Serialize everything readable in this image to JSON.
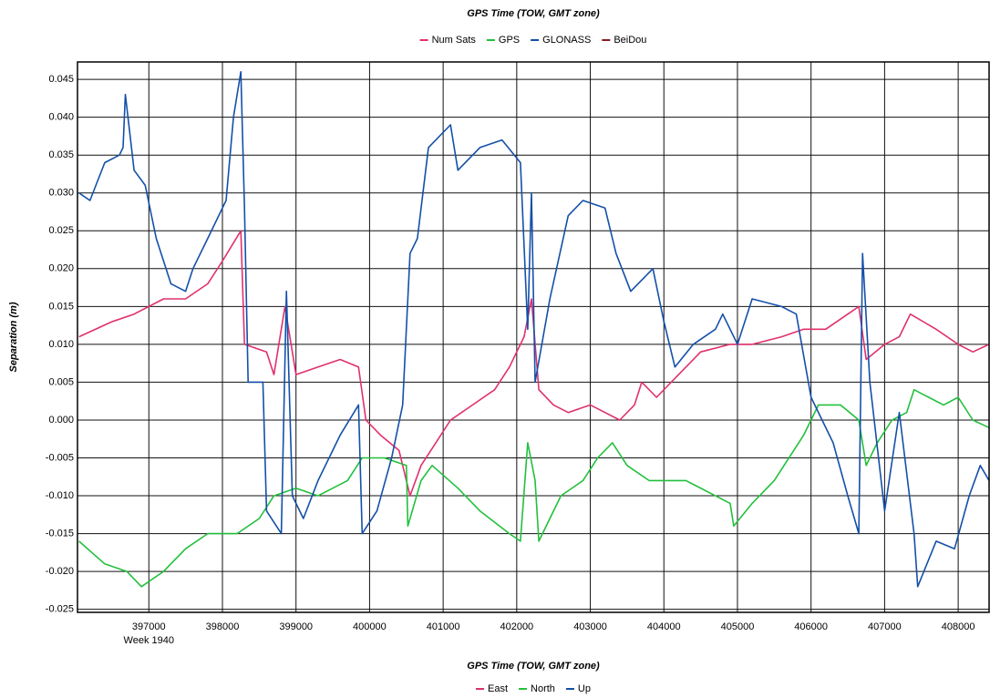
{
  "chart_data": {
    "type": "line",
    "title": "GPS Time (TOW, GMT zone)",
    "x_label": "GPS Time (TOW, GMT zone)",
    "y_label": "Separation (m)",
    "x_annotation": "Week 1940",
    "top_legend": [
      {
        "name": "Num Sats",
        "color": "#e0306e"
      },
      {
        "name": "GPS",
        "color": "#22c03c"
      },
      {
        "name": "GLONASS",
        "color": "#1450a8"
      },
      {
        "name": "BeiDou",
        "color": "#8b1a1a"
      }
    ],
    "xlim": [
      396030,
      408420
    ],
    "ylim": [
      -0.0254,
      0.0473
    ],
    "xticks": [
      397000,
      398000,
      399000,
      400000,
      401000,
      402000,
      403000,
      404000,
      405000,
      406000,
      407000,
      408000
    ],
    "yticks": [
      0.045,
      {
        "value": 0.04,
        "label": "0.040"
      },
      0.035,
      {
        "value": 0.03,
        "label": "0.030"
      },
      0.025,
      {
        "value": 0.02,
        "label": "0.020"
      },
      0.015,
      {
        "value": 0.01,
        "label": "0.010"
      },
      0.005,
      {
        "value": 0,
        "label": "0.000"
      },
      -0.005,
      {
        "value": -0.01,
        "label": "-0.010"
      },
      -0.015,
      {
        "value": -0.02,
        "label": "-0.020"
      },
      -0.025
    ],
    "grid": true,
    "series": [
      {
        "name": "East",
        "color": "#e0306e",
        "x": [
          396050,
          396500,
          396800,
          397200,
          397500,
          397800,
          398000,
          398250,
          398300,
          398600,
          398700,
          398850,
          399000,
          399300,
          399600,
          399850,
          399950,
          400150,
          400400,
          400550,
          400700,
          400900,
          401100,
          401400,
          401700,
          401900,
          402100,
          402200,
          402300,
          402500,
          402700,
          403000,
          403200,
          403400,
          403600,
          403700,
          403900,
          404200,
          404500,
          404900,
          405200,
          405600,
          405900,
          406200,
          406500,
          406650,
          406750,
          407000,
          407200,
          407350,
          407700,
          408000,
          408200,
          408420
        ],
        "values": [
          0.011,
          0.013,
          0.014,
          0.016,
          0.016,
          0.018,
          0.021,
          0.025,
          0.01,
          0.009,
          0.006,
          0.015,
          0.006,
          0.007,
          0.008,
          0.007,
          0.0,
          -0.002,
          -0.004,
          -0.01,
          -0.006,
          -0.003,
          0.0,
          0.002,
          0.004,
          0.007,
          0.011,
          0.016,
          0.004,
          0.002,
          0.001,
          0.002,
          0.001,
          0.0,
          0.002,
          0.005,
          0.003,
          0.006,
          0.009,
          0.01,
          0.01,
          0.011,
          0.012,
          0.012,
          0.014,
          0.015,
          0.008,
          0.01,
          0.011,
          0.014,
          0.012,
          0.01,
          0.009,
          0.01
        ]
      },
      {
        "name": "North",
        "color": "#22c03c",
        "x": [
          396050,
          396400,
          396700,
          396900,
          397200,
          397500,
          397800,
          398200,
          398500,
          398700,
          399000,
          399300,
          399700,
          399900,
          400200,
          400500,
          400520,
          400700,
          400850,
          401200,
          401500,
          401900,
          402050,
          402150,
          402250,
          402300,
          402600,
          402900,
          403100,
          403300,
          403500,
          403800,
          404300,
          404700,
          404900,
          404950,
          405200,
          405500,
          405900,
          406100,
          406400,
          406650,
          406750,
          406900,
          407100,
          407300,
          407400,
          407800,
          408000,
          408200,
          408420
        ],
        "values": [
          -0.016,
          -0.019,
          -0.02,
          -0.022,
          -0.02,
          -0.017,
          -0.015,
          -0.015,
          -0.013,
          -0.01,
          -0.009,
          -0.01,
          -0.008,
          -0.005,
          -0.005,
          -0.006,
          -0.014,
          -0.008,
          -0.006,
          -0.009,
          -0.012,
          -0.015,
          -0.016,
          -0.003,
          -0.008,
          -0.016,
          -0.01,
          -0.008,
          -0.005,
          -0.003,
          -0.006,
          -0.008,
          -0.008,
          -0.01,
          -0.011,
          -0.014,
          -0.011,
          -0.008,
          -0.002,
          0.002,
          0.002,
          0.0,
          -0.006,
          -0.003,
          0.0,
          0.001,
          0.004,
          0.002,
          0.003,
          0.0,
          -0.001
        ]
      },
      {
        "name": "Up",
        "color": "#1450a8",
        "x": [
          396050,
          396200,
          396400,
          396600,
          396650,
          396680,
          396800,
          396950,
          397100,
          397300,
          397500,
          397600,
          397800,
          398050,
          398150,
          398250,
          398300,
          398350,
          398550,
          398600,
          398800,
          398870,
          398950,
          399100,
          399300,
          399600,
          399850,
          399900,
          400100,
          400300,
          400450,
          400550,
          400650,
          400800,
          401100,
          401200,
          401500,
          401800,
          402050,
          402150,
          402200,
          402250,
          402450,
          402700,
          402900,
          403200,
          403350,
          403550,
          403850,
          404000,
          404150,
          404400,
          404700,
          404800,
          405000,
          405200,
          405600,
          405800,
          406000,
          406300,
          406500,
          406650,
          406700,
          406800,
          407000,
          407200,
          407400,
          407450,
          407700,
          407950,
          408150,
          408300,
          408420
        ],
        "values": [
          0.03,
          0.029,
          0.034,
          0.035,
          0.036,
          0.043,
          0.033,
          0.031,
          0.024,
          0.018,
          0.017,
          0.02,
          0.024,
          0.029,
          0.04,
          0.046,
          0.028,
          0.005,
          0.005,
          -0.012,
          -0.015,
          0.017,
          -0.01,
          -0.013,
          -0.008,
          -0.002,
          0.002,
          -0.015,
          -0.012,
          -0.005,
          0.002,
          0.022,
          0.024,
          0.036,
          0.039,
          0.033,
          0.036,
          0.037,
          0.034,
          0.012,
          0.03,
          0.005,
          0.016,
          0.027,
          0.029,
          0.028,
          0.022,
          0.017,
          0.02,
          0.013,
          0.007,
          0.01,
          0.012,
          0.014,
          0.01,
          0.016,
          0.015,
          0.014,
          0.003,
          -0.003,
          -0.01,
          -0.015,
          0.022,
          0.005,
          -0.012,
          0.001,
          -0.015,
          -0.022,
          -0.016,
          -0.017,
          -0.01,
          -0.006,
          -0.008
        ]
      }
    ]
  }
}
